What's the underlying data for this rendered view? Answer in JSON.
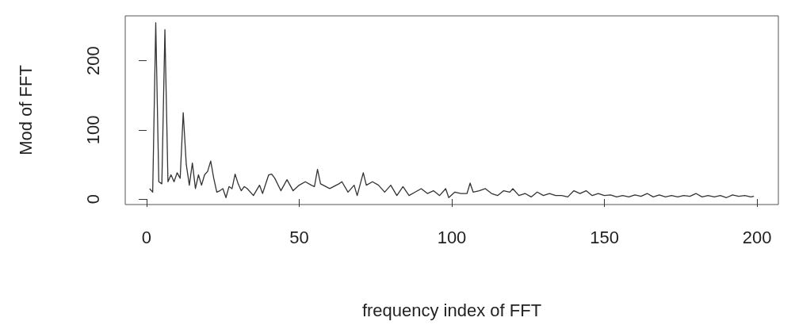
{
  "chart_data": {
    "type": "line",
    "xlabel": "frequency index of FFT",
    "ylabel": "Mod of FFT",
    "xlim": [
      -7,
      207
    ],
    "ylim": [
      -8,
      265
    ],
    "xticks": [
      0,
      50,
      100,
      150,
      200
    ],
    "yticks": [
      0,
      100,
      200
    ],
    "grid": false,
    "marker": "none",
    "line_style": "solid",
    "series": [
      {
        "color": "#333333",
        "x": [
          1,
          2,
          3,
          4,
          5,
          6,
          7,
          8,
          9,
          10,
          11,
          12,
          13,
          14,
          15,
          16,
          17,
          18,
          19,
          20,
          21,
          22,
          23,
          24,
          25,
          26,
          27,
          28,
          29,
          30,
          31,
          32,
          33,
          35,
          37,
          38,
          40,
          41,
          42,
          44,
          46,
          48,
          50,
          52,
          54,
          55,
          56,
          57,
          60,
          63,
          64,
          66,
          68,
          69,
          71,
          72,
          74,
          76,
          78,
          80,
          82,
          84,
          86,
          88,
          90,
          92,
          94,
          96,
          98,
          99,
          101,
          103,
          105,
          106,
          107,
          109,
          111,
          113,
          115,
          117,
          119,
          120,
          122,
          124,
          126,
          128,
          130,
          132,
          134,
          136,
          138,
          140,
          142,
          144,
          146,
          148,
          150,
          152,
          154,
          156,
          158,
          160,
          162,
          164,
          166,
          168,
          170,
          172,
          174,
          176,
          178,
          180,
          182,
          184,
          186,
          188,
          190,
          192,
          194,
          196,
          198,
          199
        ],
        "values": [
          15,
          10,
          255,
          25,
          22,
          245,
          25,
          35,
          25,
          38,
          30,
          125,
          50,
          20,
          52,
          15,
          35,
          20,
          35,
          40,
          55,
          30,
          10,
          12,
          15,
          2,
          18,
          15,
          36,
          22,
          12,
          18,
          15,
          5,
          20,
          8,
          35,
          36,
          30,
          12,
          28,
          12,
          20,
          25,
          20,
          18,
          43,
          22,
          15,
          22,
          25,
          10,
          20,
          5,
          38,
          20,
          25,
          20,
          10,
          20,
          5,
          18,
          5,
          10,
          15,
          8,
          12,
          5,
          15,
          2,
          10,
          8,
          8,
          23,
          10,
          12,
          15,
          8,
          5,
          12,
          10,
          15,
          5,
          8,
          3,
          10,
          5,
          8,
          5,
          5,
          3,
          12,
          8,
          12,
          5,
          8,
          5,
          6,
          3,
          5,
          3,
          6,
          4,
          8,
          3,
          6,
          3,
          5,
          3,
          5,
          4,
          8,
          3,
          5,
          3,
          5,
          2,
          6,
          4,
          5,
          3,
          4
        ]
      }
    ]
  }
}
